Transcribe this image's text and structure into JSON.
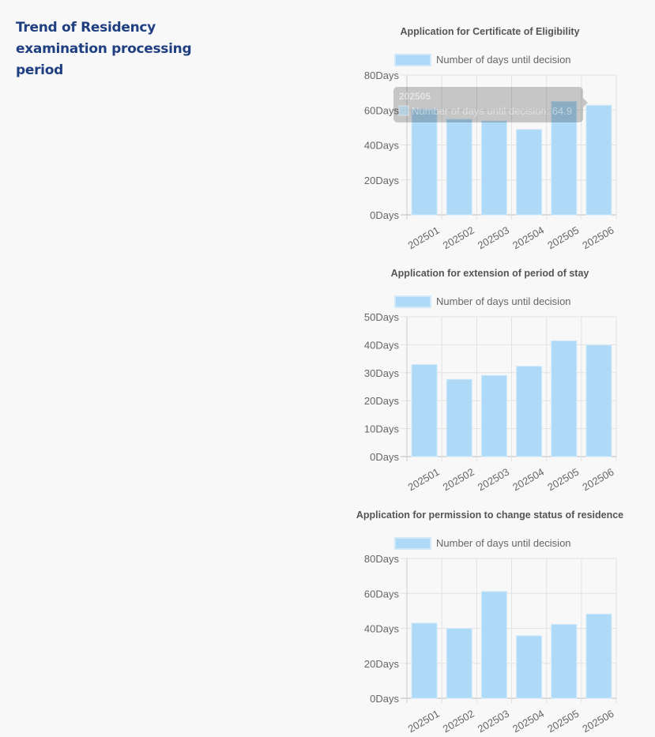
{
  "page": {
    "title": "Trend of Residency examination processing period"
  },
  "colors": {
    "bar_fill": "#aedaf7",
    "bar_border": "#cfe9fb",
    "title": "#1f3f80",
    "grid": "#e2e2e2",
    "axis_text": "#666666"
  },
  "chart_data": [
    {
      "type": "bar",
      "title": "Application for Certificate of Eligibility",
      "legend": "Number of days until decision",
      "legend_position": "top",
      "categories": [
        "202501",
        "202502",
        "202503",
        "202504",
        "202505",
        "202506"
      ],
      "series": [
        {
          "name": "Number of days until decision",
          "values": [
            60.5,
            54.7,
            53.7,
            48.9,
            64.9,
            62.7
          ]
        }
      ],
      "ylim": [
        0,
        80
      ],
      "yticks": [
        "0Days",
        "20Days",
        "40Days",
        "60Days",
        "80Days"
      ],
      "grid": true,
      "tooltip": {
        "title": "202505",
        "label": "Number of days until decision: 64.9"
      }
    },
    {
      "type": "bar",
      "title": "Application for extension of period of stay",
      "legend": "Number of days until decision",
      "legend_position": "top",
      "categories": [
        "202501",
        "202502",
        "202503",
        "202504",
        "202505",
        "202506"
      ],
      "series": [
        {
          "name": "Number of days until decision",
          "values": [
            32.9,
            27.6,
            29.0,
            32.3,
            41.4,
            39.9
          ]
        }
      ],
      "ylim": [
        0,
        50
      ],
      "yticks": [
        "0Days",
        "10Days",
        "20Days",
        "30Days",
        "40Days",
        "50Days"
      ],
      "grid": true
    },
    {
      "type": "bar",
      "title": "Application for permission to change status of residence",
      "legend": "Number of days until decision",
      "legend_position": "top",
      "categories": [
        "202501",
        "202502",
        "202503",
        "202504",
        "202505",
        "202506"
      ],
      "series": [
        {
          "name": "Number of days until decision",
          "values": [
            43.0,
            39.9,
            61.1,
            35.8,
            42.3,
            48.2
          ]
        }
      ],
      "ylim": [
        0,
        80
      ],
      "yticks": [
        "0Days",
        "20Days",
        "40Days",
        "60Days",
        "80Days"
      ],
      "grid": true
    }
  ]
}
